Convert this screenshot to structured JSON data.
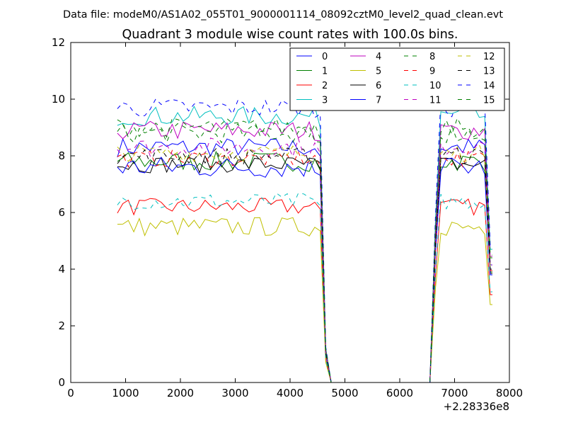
{
  "suptitle": "Data file: modeM0/AS1A02_055T01_9000001114_08092cztM0_level2_quad_clean.evt",
  "chart_data": {
    "type": "line",
    "title": "Quadrant 3 module wise count rates with 100.0s bins.",
    "xlabel": "",
    "ylabel": "",
    "x_offset_label": "+2.28336e8",
    "xlim": [
      0,
      8000
    ],
    "ylim": [
      0,
      12
    ],
    "xticks": [
      0,
      1000,
      2000,
      3000,
      4000,
      5000,
      6000,
      7000,
      8000
    ],
    "yticks": [
      0,
      2,
      4,
      6,
      8,
      10,
      12
    ],
    "grid": false,
    "legend_position": "top-right",
    "legend_columns": 4,
    "x": [
      850,
      950,
      1050,
      1150,
      1250,
      1350,
      1450,
      1550,
      1650,
      1750,
      1850,
      1950,
      2050,
      2150,
      2250,
      2350,
      2450,
      2550,
      2650,
      2750,
      2850,
      2950,
      3050,
      3150,
      3250,
      3350,
      3450,
      3550,
      3650,
      3750,
      3850,
      3950,
      4050,
      4150,
      4250,
      4350,
      4450,
      4550,
      4650,
      4750,
      4850,
      4950,
      5050,
      5150,
      5250,
      5350,
      5450,
      5550,
      5650,
      5750,
      5850,
      5950,
      6050,
      6150,
      6250,
      6350,
      6450,
      6550,
      6650,
      6750,
      6850,
      6950,
      7050,
      7150,
      7250,
      7350,
      7450,
      7550,
      7650,
      7690
    ],
    "series": [
      {
        "name": "0",
        "color": "#0000ff",
        "dash": "solid",
        "plateau": 8.3,
        "variation": 0.35
      },
      {
        "name": "1",
        "color": "#008000",
        "dash": "solid",
        "plateau": 7.8,
        "variation": 0.35
      },
      {
        "name": "2",
        "color": "#ff0000",
        "dash": "solid",
        "plateau": 6.2,
        "variation": 0.3
      },
      {
        "name": "3",
        "color": "#00bfbf",
        "dash": "solid",
        "plateau": 9.4,
        "variation": 0.35
      },
      {
        "name": "4",
        "color": "#bf00bf",
        "dash": "solid",
        "plateau": 8.9,
        "variation": 0.35
      },
      {
        "name": "5",
        "color": "#bfbf00",
        "dash": "solid",
        "plateau": 5.5,
        "variation": 0.35
      },
      {
        "name": "6",
        "color": "#000000",
        "dash": "solid",
        "plateau": 7.7,
        "variation": 0.3
      },
      {
        "name": "7",
        "color": "#0000ff",
        "dash": "solid",
        "plateau": 7.6,
        "variation": 0.4
      },
      {
        "name": "8",
        "color": "#008000",
        "dash": "dashed",
        "plateau": 8.8,
        "variation": 0.35
      },
      {
        "name": "9",
        "color": "#ff0000",
        "dash": "dashed",
        "plateau": 7.9,
        "variation": 0.3
      },
      {
        "name": "10",
        "color": "#00bfbf",
        "dash": "dashed",
        "plateau": 6.4,
        "variation": 0.3
      },
      {
        "name": "11",
        "color": "#bf00bf",
        "dash": "dashed",
        "plateau": 8.3,
        "variation": 0.35
      },
      {
        "name": "12",
        "color": "#bfbf00",
        "dash": "dashed",
        "plateau": 8.1,
        "variation": 0.3
      },
      {
        "name": "13",
        "color": "#000000",
        "dash": "dashed",
        "plateau": 8.0,
        "variation": 0.3
      },
      {
        "name": "14",
        "color": "#0000ff",
        "dash": "dashed",
        "plateau": 9.7,
        "variation": 0.35
      },
      {
        "name": "15",
        "color": "#008000",
        "dash": "dashed",
        "plateau": 9.0,
        "variation": 0.35
      }
    ]
  }
}
